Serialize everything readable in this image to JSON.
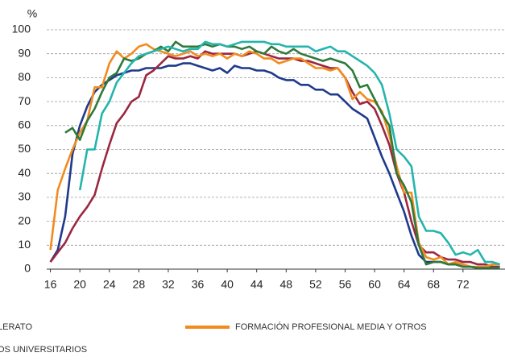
{
  "chart_data": {
    "type": "line",
    "y_unit": "%",
    "x": [
      16,
      17,
      18,
      19,
      20,
      21,
      22,
      23,
      24,
      25,
      26,
      27,
      28,
      29,
      30,
      31,
      32,
      33,
      34,
      35,
      36,
      37,
      38,
      39,
      40,
      41,
      42,
      43,
      44,
      45,
      46,
      47,
      48,
      49,
      50,
      51,
      52,
      53,
      54,
      55,
      56,
      57,
      58,
      59,
      60,
      61,
      62,
      63,
      64,
      65,
      66,
      67,
      68,
      69,
      70,
      71,
      72,
      73,
      74,
      75,
      76,
      77
    ],
    "xlim": [
      15.5,
      77.7
    ],
    "xticks": [
      16,
      20,
      24,
      28,
      32,
      36,
      40,
      44,
      48,
      52,
      56,
      60,
      64,
      68,
      72
    ],
    "ylim": [
      0,
      100
    ],
    "yticks": [
      0,
      10,
      20,
      30,
      40,
      50,
      60,
      70,
      80,
      90,
      100
    ],
    "grid": true,
    "series": [
      {
        "name": "LERATO",
        "color": "#1f3a8c",
        "values": [
          3,
          8,
          22,
          48,
          60,
          68,
          74,
          77,
          79,
          81,
          82,
          83,
          83,
          84,
          84,
          84,
          85,
          85,
          86,
          86,
          85,
          84,
          83,
          84,
          82,
          85,
          84,
          84,
          83,
          83,
          82,
          80,
          79,
          79,
          77,
          77,
          75,
          75,
          73,
          73,
          70,
          67,
          65,
          63,
          55,
          47,
          40,
          32,
          24,
          14,
          6,
          3,
          3,
          3,
          2,
          2,
          1,
          1,
          0.5,
          0.5,
          0.5,
          0.5
        ]
      },
      {
        "color": "#9b2740",
        "values": [
          3,
          7,
          11,
          17,
          22,
          26,
          31,
          42,
          52,
          61,
          65,
          70,
          72,
          81,
          83,
          86,
          89,
          88,
          88,
          89,
          88,
          91,
          90,
          90,
          90,
          90,
          89,
          90,
          91,
          90,
          89,
          88,
          88,
          88,
          87,
          87,
          86,
          85,
          84,
          84,
          80,
          74,
          69,
          70,
          67,
          60,
          52,
          40,
          32,
          20,
          10,
          7,
          7,
          5,
          4,
          4,
          3,
          3,
          2,
          2,
          1,
          1
        ]
      },
      {
        "name": "FORMACIÓN PROFESIONAL MEDIA Y OTROS",
        "color": "#f28b1f",
        "values": [
          8,
          33,
          42,
          50,
          57,
          62,
          76,
          76,
          86,
          91,
          88,
          90,
          93,
          94,
          92,
          91,
          90,
          89,
          90,
          91,
          89,
          90,
          89,
          90,
          88,
          90,
          89,
          91,
          90,
          88,
          88,
          86,
          87,
          88,
          88,
          86,
          84,
          84,
          83,
          84,
          80,
          71,
          74,
          71,
          70,
          66,
          56,
          43,
          32,
          32,
          11,
          5,
          4,
          5,
          2,
          3,
          2,
          1,
          1,
          1,
          2,
          2
        ]
      },
      {
        "color": "#2e7a3a",
        "values": [
          null,
          null,
          57,
          59,
          54,
          62,
          67,
          74,
          80,
          82,
          88,
          87,
          88,
          90,
          91,
          93,
          91,
          95,
          93,
          93,
          93,
          94,
          93,
          94,
          93,
          93,
          92,
          93,
          91,
          90,
          93,
          91,
          90,
          92,
          90,
          89,
          88,
          87,
          88,
          87,
          86,
          83,
          76,
          77,
          71,
          65,
          60,
          40,
          35,
          28,
          10,
          2,
          3,
          3,
          2,
          2,
          1,
          1,
          0.5,
          0.5,
          0.5,
          0.5
        ]
      },
      {
        "name": "OS UNIVERSITARIOS",
        "color": "#23b5ad",
        "values": [
          null,
          null,
          null,
          null,
          33,
          50,
          50,
          65,
          70,
          78,
          82,
          86,
          89,
          90,
          91,
          92,
          93,
          92,
          91,
          92,
          92,
          95,
          94,
          94,
          93,
          94,
          95,
          95,
          95,
          95,
          94,
          94,
          93,
          93,
          93,
          93,
          91,
          92,
          93,
          91,
          91,
          89,
          87,
          85,
          82,
          77,
          65,
          50,
          47,
          43,
          22,
          16,
          16,
          15,
          11,
          6,
          7,
          6,
          8,
          3,
          3,
          2
        ]
      }
    ]
  }
}
